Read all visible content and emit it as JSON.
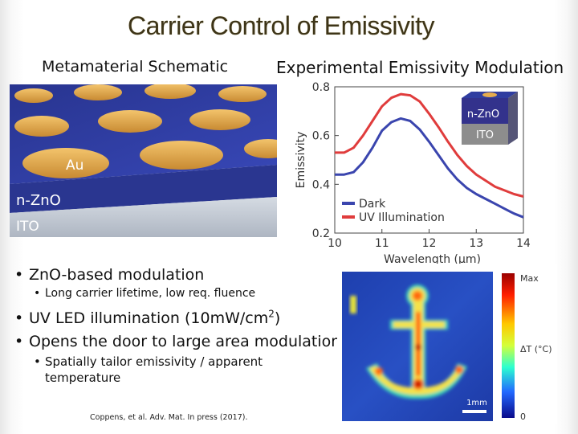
{
  "slide": {
    "title": "Carrier Control of Emissivity",
    "subtitle_left": "Metamaterial Schematic",
    "subtitle_right": "Experimental Emissivity Modulation",
    "bullets": [
      {
        "text": "ZnO-based modulation",
        "sub": [
          "Long carrier lifetime, low req. fluence"
        ]
      },
      {
        "text": "UV LED illumination (10mW/cm2)",
        "sub": []
      },
      {
        "text": "Opens the door to large area modulation",
        "sub": [
          "Spatially tailor emissivity / apparent",
          "temperature"
        ]
      }
    ],
    "citation": "Coppens, et al. Adv. Mat. In press (2017)."
  },
  "schematic": {
    "labels": {
      "au": "Au",
      "zno": "n-ZnO",
      "ito": "ITO"
    },
    "colors": {
      "substrate": "#2d3a9e",
      "disk": "#e6ac4e",
      "ito": "#c3cbd6"
    }
  },
  "chart_data": {
    "type": "line",
    "title": "Experimental Emissivity Modulation",
    "xlabel": "Wavelength (μm)",
    "ylabel": "Emissivity",
    "xlim": [
      10,
      14
    ],
    "ylim": [
      0.2,
      0.8
    ],
    "xticks": [
      10,
      11,
      12,
      13,
      14
    ],
    "yticks": [
      0.2,
      0.4,
      0.6,
      0.8
    ],
    "legend": "bottom-left",
    "inset_labels": [
      "n-ZnO",
      "ITO"
    ],
    "series": [
      {
        "name": "Dark",
        "color": "#3a45ae",
        "x": [
          10.0,
          10.2,
          10.4,
          10.6,
          10.8,
          11.0,
          11.2,
          11.4,
          11.6,
          11.8,
          12.0,
          12.2,
          12.4,
          12.6,
          12.8,
          13.0,
          13.2,
          13.4,
          13.6,
          13.8,
          14.0
        ],
        "y": [
          0.44,
          0.44,
          0.45,
          0.49,
          0.55,
          0.62,
          0.655,
          0.67,
          0.66,
          0.625,
          0.575,
          0.52,
          0.465,
          0.42,
          0.385,
          0.36,
          0.34,
          0.32,
          0.3,
          0.28,
          0.265
        ]
      },
      {
        "name": "UV Illumination",
        "color": "#e03c3c",
        "x": [
          10.0,
          10.2,
          10.4,
          10.6,
          10.8,
          11.0,
          11.2,
          11.4,
          11.6,
          11.8,
          12.0,
          12.2,
          12.4,
          12.6,
          12.8,
          13.0,
          13.2,
          13.4,
          13.6,
          13.8,
          14.0
        ],
        "y": [
          0.53,
          0.53,
          0.55,
          0.6,
          0.66,
          0.72,
          0.755,
          0.77,
          0.765,
          0.74,
          0.69,
          0.635,
          0.575,
          0.52,
          0.475,
          0.44,
          0.415,
          0.39,
          0.375,
          0.36,
          0.35
        ]
      }
    ]
  },
  "thermal_map": {
    "colorbar_max": "Max",
    "colorbar_min": "0",
    "colorbar_label": "ΔT (°C)",
    "scale_label": "1mm"
  }
}
